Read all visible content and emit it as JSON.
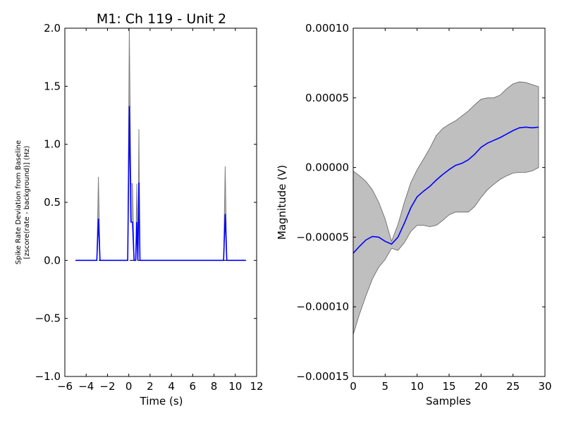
{
  "chart_data": [
    {
      "type": "line",
      "title": "M1: Ch 119 - Unit 2",
      "xlabel": "Time (s)",
      "ylabel_line1": "Spike Rate Deviation from Baseline",
      "ylabel_line2": "[zscore(rate - background)] (Hz)",
      "xlim": [
        -6,
        12
      ],
      "ylim": [
        -1.0,
        2.0
      ],
      "xticks": [
        -6,
        -4,
        -2,
        0,
        2,
        4,
        6,
        8,
        10,
        12
      ],
      "xtick_labels": [
        "−6",
        "−4",
        "−2",
        "0",
        "2",
        "4",
        "6",
        "8",
        "10",
        "12"
      ],
      "yticks": [
        -1.0,
        -0.5,
        0.0,
        0.5,
        1.0,
        1.5,
        2.0
      ],
      "ytick_labels": [
        "−1.0",
        "−0.5",
        "0.0",
        "0.5",
        "1.0",
        "1.5",
        "2.0"
      ],
      "grid": false,
      "mean_color": "#0000ff",
      "band_color": "#808080",
      "baseline_color": "#000000",
      "baseline": [
        [
          -5,
          0
        ],
        [
          11,
          0
        ]
      ],
      "mean": [
        [
          -5,
          0
        ],
        [
          -3.0,
          0
        ],
        [
          -2.85,
          0.36
        ],
        [
          -2.7,
          0
        ],
        [
          -0.1,
          0
        ],
        [
          0.05,
          1.33
        ],
        [
          0.2,
          0.33
        ],
        [
          0.35,
          0.33
        ],
        [
          0.5,
          0
        ],
        [
          0.65,
          0
        ],
        [
          0.75,
          0.33
        ],
        [
          0.85,
          0
        ],
        [
          0.95,
          0.67
        ],
        [
          1.05,
          0
        ],
        [
          8.9,
          0
        ],
        [
          9.05,
          0.4
        ],
        [
          9.2,
          0
        ],
        [
          11,
          0
        ]
      ],
      "upper": [
        [
          -5,
          0
        ],
        [
          -3.0,
          0
        ],
        [
          -2.85,
          0.72
        ],
        [
          -2.7,
          0
        ],
        [
          -0.1,
          0
        ],
        [
          0.05,
          2.0
        ],
        [
          0.2,
          0.66
        ],
        [
          0.35,
          0.66
        ],
        [
          0.5,
          0
        ],
        [
          0.65,
          0
        ],
        [
          0.75,
          0.66
        ],
        [
          0.85,
          0
        ],
        [
          0.95,
          1.13
        ],
        [
          1.05,
          0
        ],
        [
          8.9,
          0
        ],
        [
          9.05,
          0.81
        ],
        [
          9.2,
          0
        ],
        [
          11,
          0
        ]
      ]
    },
    {
      "type": "area",
      "xlabel": "Samples",
      "ylabel": "Magnitude (V)",
      "xlim": [
        0,
        30
      ],
      "ylim": [
        -0.00015,
        0.0001
      ],
      "xticks": [
        0,
        5,
        10,
        15,
        20,
        25,
        30
      ],
      "xtick_labels": [
        "0",
        "5",
        "10",
        "15",
        "20",
        "25",
        "30"
      ],
      "yticks": [
        -0.00015,
        -0.0001,
        -5e-05,
        0,
        5e-05,
        0.0001
      ],
      "ytick_labels": [
        "−0.00015",
        "−0.00010",
        "−0.00005",
        "0.00000",
        "0.00005",
        "0.00010"
      ],
      "grid": false,
      "mean_color": "#0000ff",
      "band_color": "#bfbfbf",
      "x": [
        0,
        1,
        2,
        3,
        4,
        5,
        6,
        7,
        8,
        9,
        10,
        11,
        12,
        13,
        14,
        15,
        16,
        17,
        18,
        19,
        20,
        21,
        22,
        23,
        24,
        25,
        26,
        27,
        28,
        29
      ],
      "mean": [
        -6.15e-05,
        -5.65e-05,
        -5.2e-05,
        -4.95e-05,
        -5e-05,
        -5.3e-05,
        -5.5e-05,
        -5e-05,
        -4e-05,
        -2.9e-05,
        -2.1e-05,
        -1.7e-05,
        -1.35e-05,
        -9e-06,
        -5e-06,
        -1.5e-06,
        1.5e-06,
        3e-06,
        5.5e-06,
        9.5e-06,
        1.45e-05,
        1.75e-05,
        1.95e-05,
        2.15e-05,
        2.4e-05,
        2.65e-05,
        2.85e-05,
        2.9e-05,
        2.85e-05,
        2.9e-05
      ],
      "upper": [
        -2.5e-06,
        -6e-06,
        -1e-05,
        -1.6e-05,
        -2.5e-05,
        -3.7e-05,
        -5.3e-05,
        -4.1e-05,
        -2.5e-05,
        -1.1e-05,
        -1.5e-06,
        6e-06,
        1.4e-05,
        2.3e-05,
        2.8e-05,
        3.1e-05,
        3.35e-05,
        3.7e-05,
        4.05e-05,
        4.5e-05,
        4.9e-05,
        5e-05,
        5e-05,
        5.2e-05,
        5.65e-05,
        6e-05,
        6.15e-05,
        6.1e-05,
        5.95e-05,
        5.8e-05
      ],
      "lower": [
        -0.00012,
        -0.000105,
        -9.2e-05,
        -8e-05,
        -7.15e-05,
        -6.6e-05,
        -5.8e-05,
        -5.95e-05,
        -5.4e-05,
        -4.6e-05,
        -4.15e-05,
        -4.15e-05,
        -4.25e-05,
        -4.15e-05,
        -3.8e-05,
        -3.4e-05,
        -3.2e-05,
        -3.2e-05,
        -3.2e-05,
        -2.8e-05,
        -2.15e-05,
        -1.6e-05,
        -1.2e-05,
        -8.5e-06,
        -6e-06,
        -4e-06,
        -3.5e-06,
        -3.5e-06,
        -2.5e-06,
        0
      ]
    }
  ]
}
